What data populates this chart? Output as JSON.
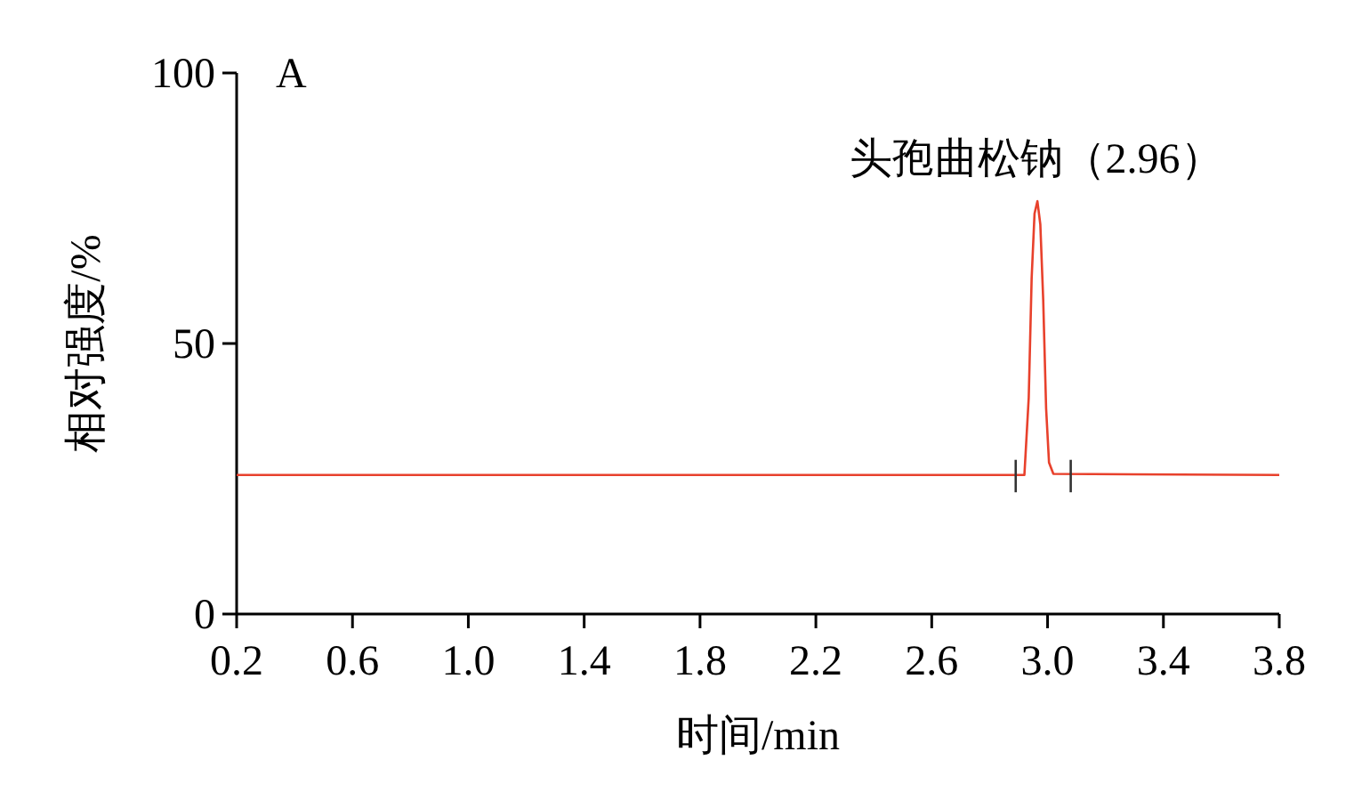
{
  "chart_data": {
    "type": "line",
    "xlabel": "时间/min",
    "ylabel": "相对强度/%",
    "xlim": [
      0.2,
      3.8
    ],
    "ylim": [
      0,
      100
    ],
    "xticks": [
      {
        "value": 0.2,
        "label": "0.2"
      },
      {
        "value": 0.6,
        "label": "0.6"
      },
      {
        "value": 1.0,
        "label": "1.0"
      },
      {
        "value": 1.4,
        "label": "1.4"
      },
      {
        "value": 1.8,
        "label": "1.8"
      },
      {
        "value": 2.2,
        "label": "2.2"
      },
      {
        "value": 2.6,
        "label": "2.6"
      },
      {
        "value": 3.0,
        "label": "3.0"
      },
      {
        "value": 3.4,
        "label": "3.4"
      },
      {
        "value": 3.8,
        "label": "3.8"
      }
    ],
    "yticks": [
      0,
      50,
      100
    ],
    "grid": false,
    "marker": "none",
    "line_style": "solid",
    "series": [
      {
        "color": "#e8412c",
        "x": [
          0.2,
          2.92,
          2.935,
          2.945,
          2.955,
          2.965,
          2.975,
          2.985,
          2.995,
          3.005,
          3.02,
          3.8
        ],
        "values": [
          25.7,
          25.7,
          40,
          62,
          74,
          76.3,
          72,
          58,
          38,
          28,
          25.9,
          25.7
        ]
      },
      {
        "color": "#333333",
        "x": [
          2.89,
          2.89
        ],
        "values": [
          22.5,
          28.5
        ]
      },
      {
        "color": "#333333",
        "x": [
          3.08,
          3.08
        ],
        "values": [
          22.5,
          28.5
        ]
      }
    ],
    "annotations": [
      "A",
      {
        "text": "头孢曲松钠（2.96）",
        "x": 2.96,
        "y": 76.3
      }
    ]
  }
}
